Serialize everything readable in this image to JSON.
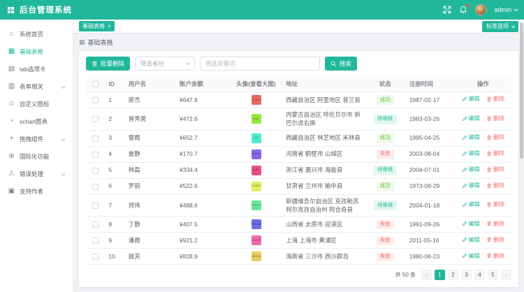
{
  "app": {
    "primary_color": "#21b79b"
  },
  "header": {
    "title": "后台管理系统",
    "username": "admin"
  },
  "sidebar": {
    "items": [
      {
        "key": "dashboard",
        "label": "系统首页",
        "icon": "home-icon",
        "glyph": "⌂",
        "active": false,
        "expandable": false
      },
      {
        "key": "basetable",
        "label": "基础表格",
        "icon": "table-icon",
        "glyph": "▦",
        "active": true,
        "expandable": false
      },
      {
        "key": "tabs",
        "label": "tab选项卡",
        "icon": "tabs-icon",
        "glyph": "▤",
        "active": false,
        "expandable": false
      },
      {
        "key": "form",
        "label": "表单相关",
        "icon": "form-icon",
        "glyph": "▥",
        "active": false,
        "expandable": true
      },
      {
        "key": "icons",
        "label": "自定义图标",
        "icon": "smile-icon",
        "glyph": "☺",
        "active": false,
        "expandable": false
      },
      {
        "key": "charts",
        "label": "schart图表",
        "icon": "chart-icon",
        "glyph": "◔",
        "active": false,
        "expandable": false
      },
      {
        "key": "drag",
        "label": "拖拽组件",
        "icon": "drag-icon",
        "glyph": "+",
        "active": false,
        "expandable": true
      },
      {
        "key": "i18n",
        "label": "国际化功能",
        "icon": "globe-icon",
        "glyph": "⊕",
        "active": false,
        "expandable": false
      },
      {
        "key": "error",
        "label": "错误处理",
        "icon": "warning-icon",
        "glyph": "⚠",
        "active": false,
        "expandable": true
      },
      {
        "key": "donate",
        "label": "支持作者",
        "icon": "support-icon",
        "glyph": "▣",
        "active": false,
        "expandable": false
      }
    ]
  },
  "tags_bar": {
    "tabs": [
      {
        "label": "基础表格",
        "active": true
      }
    ],
    "close_glyph": "×",
    "options_label": "标签选项"
  },
  "breadcrumb": {
    "icon_glyph": "▦",
    "label": "基础表格"
  },
  "toolbar": {
    "batch_delete": "批量删除",
    "province_placeholder": "筛选省份",
    "keyword_placeholder": "筛选关键词",
    "search": "搜索"
  },
  "table": {
    "columns": [
      {
        "label": "ID",
        "align": "left"
      },
      {
        "label": "用户名",
        "align": "left"
      },
      {
        "label": "账户余额",
        "align": "left"
      },
      {
        "label": "头像(查看大图)",
        "align": "center"
      },
      {
        "label": "地址",
        "align": "left"
      },
      {
        "label": "状态",
        "align": "center"
      },
      {
        "label": "注册时间",
        "align": "left"
      },
      {
        "label": "操作",
        "align": "center"
      }
    ],
    "edit_label": "编辑",
    "delete_label": "删除",
    "state_class": {
      "成功": "st-success",
      "待审核": "st-pending",
      "失败": "st-danger"
    },
    "rows": [
      {
        "id": 1,
        "name": "廖杰",
        "money": "¥647.8",
        "avatar_color": "#e8695f",
        "avatar_text": "ecbx",
        "address": "西藏自治区 阿里地区 普兰县",
        "state": "成功",
        "date": "1987-02-17"
      },
      {
        "id": 2,
        "name": "曾秀英",
        "money": "¥472.6",
        "avatar_color": "#97e83e",
        "avatar_text": "gxgr",
        "address": "内蒙古自治区 呼伦贝尔市 新巴尔虎右旗",
        "state": "待审核",
        "date": "1983-03-26"
      },
      {
        "id": 3,
        "name": "雷霞",
        "money": "¥652.7",
        "avatar_color": "#4deccd",
        "avatar_text": "njcl",
        "address": "西藏自治区 林芝地区 米林县",
        "state": "成功",
        "date": "1995-04-25"
      },
      {
        "id": 4,
        "name": "姜静",
        "money": "¥170.7",
        "avatar_color": "#8a67e8",
        "avatar_text": "afeap",
        "address": "河南省 鹤壁市 山城区",
        "state": "失败",
        "date": "2003-08-04"
      },
      {
        "id": 5,
        "name": "林磊",
        "money": "¥334.4",
        "avatar_color": "#ea5181",
        "avatar_text": "cqfh",
        "address": "浙江省 嘉兴市 海盐县",
        "state": "待审核",
        "date": "2004-07-01"
      },
      {
        "id": 6,
        "name": "罗丽",
        "money": "¥522.6",
        "avatar_color": "#e2ee62",
        "avatar_text": "xmjdm",
        "address": "甘肃省 兰州市 榆中县",
        "state": "成功",
        "date": "1973-09-29"
      },
      {
        "id": 7,
        "name": "郑伟",
        "money": "¥488.6",
        "avatar_color": "#63e99c",
        "avatar_text": "mehcu",
        "address": "新疆维吾尔自治区 克孜勒苏柯尔克孜自治州 阿合奇县",
        "state": "待审核",
        "date": "2004-01-18"
      },
      {
        "id": 8,
        "name": "丁静",
        "money": "¥407.5",
        "avatar_color": "#6a6fe6",
        "avatar_text": "chabadk",
        "address": "山西省 太原市 迎泽区",
        "state": "失败",
        "date": "1991-09-26"
      },
      {
        "id": 9,
        "name": "潘霞",
        "money": "¥921.2",
        "avatar_color": "#f06ab0",
        "avatar_text": "heyrhk",
        "address": "上海 上海市 黄浦区",
        "state": "失败",
        "date": "2011-05-16"
      },
      {
        "id": 10,
        "name": "姚芳",
        "money": "¥828.9",
        "avatar_color": "#e8ce5f",
        "avatar_text": "mgefyux",
        "address": "海南省 三沙市 西沙群岛",
        "state": "失败",
        "date": "1980-06-23"
      }
    ]
  },
  "pagination": {
    "total_label": "共 50 条",
    "prev_glyph": "‹",
    "next_glyph": "›",
    "pages": [
      "1",
      "2",
      "3",
      "4",
      "5"
    ],
    "current": "1"
  }
}
